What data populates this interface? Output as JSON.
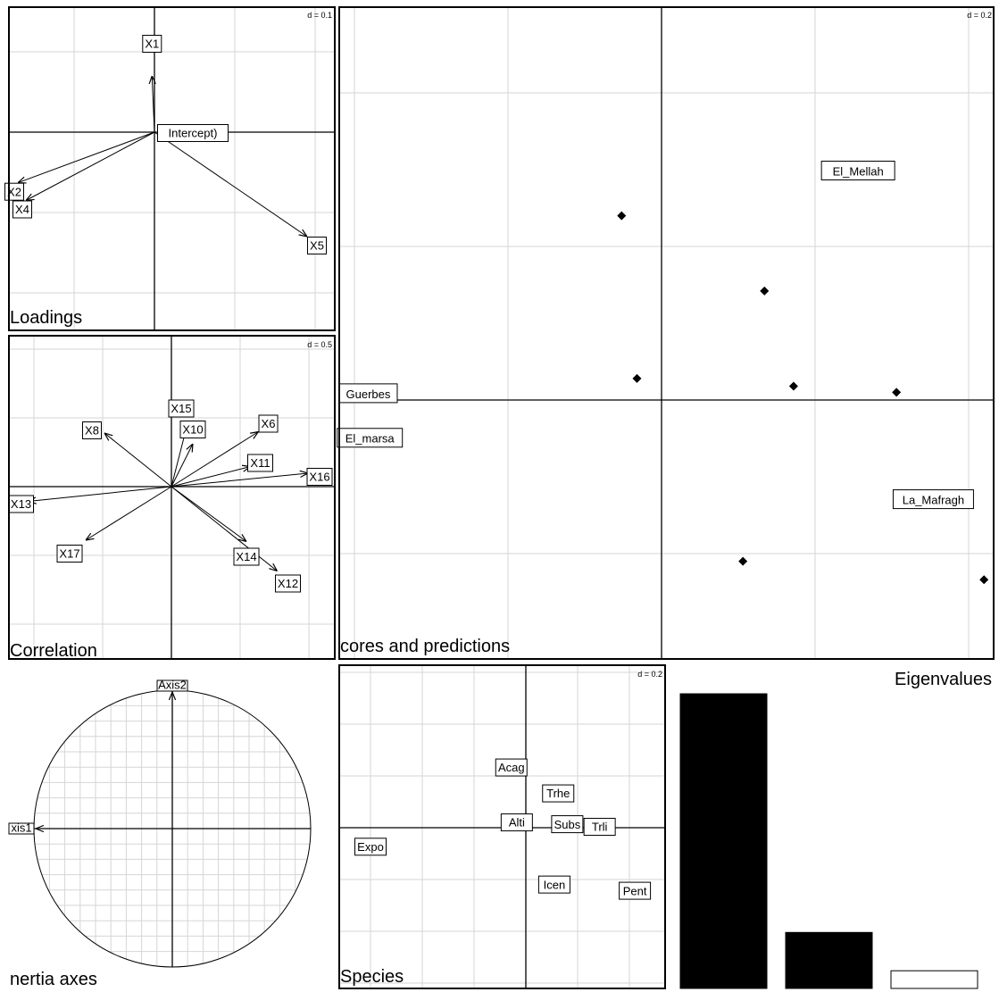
{
  "chart_data": [
    {
      "panel": "Loadings",
      "type": "scatter",
      "title": "Loadings",
      "d_label": "d = 0.1",
      "origin_label": "Intercept)",
      "vectors": [
        {
          "label": "X1",
          "x": -0.003,
          "y": 0.07
        },
        {
          "label": "X2",
          "x": -0.17,
          "y": -0.063
        },
        {
          "label": "X4",
          "x": -0.16,
          "y": -0.085
        },
        {
          "label": "X5",
          "x": 0.19,
          "y": -0.13
        }
      ]
    },
    {
      "panel": "Correlation",
      "type": "scatter",
      "title": "Correlation",
      "d_label": "d = 0.5",
      "vectors": [
        {
          "label": "X8",
          "x": -0.5,
          "y": 0.4
        },
        {
          "label": "X15",
          "x": 0.12,
          "y": 0.47
        },
        {
          "label": "X10",
          "x": 0.16,
          "y": 0.32
        },
        {
          "label": "X6",
          "x": 0.65,
          "y": 0.41
        },
        {
          "label": "X11",
          "x": 0.59,
          "y": 0.15
        },
        {
          "label": "X16",
          "x": 1.02,
          "y": 0.1
        },
        {
          "label": "X13",
          "x": -1.07,
          "y": -0.11
        },
        {
          "label": "X17",
          "x": -0.64,
          "y": -0.4
        },
        {
          "label": "X14",
          "x": 0.56,
          "y": -0.41
        },
        {
          "label": "X12",
          "x": 0.79,
          "y": -0.63
        }
      ]
    },
    {
      "panel": "Scores and predictions",
      "type": "scatter",
      "title": "cores and predictions",
      "d_label": "d = 0.2",
      "points": [
        {
          "x": -0.026,
          "y": 0.12
        },
        {
          "x": 0.067,
          "y": 0.071
        },
        {
          "x": -0.016,
          "y": 0.014
        },
        {
          "x": 0.086,
          "y": 0.009
        },
        {
          "x": 0.153,
          "y": 0.005
        },
        {
          "x": 0.053,
          "y": -0.105
        },
        {
          "x": 0.21,
          "y": -0.117
        }
      ],
      "labels": [
        {
          "label": "El_Mellah",
          "x": 0.128,
          "y": 0.15
        },
        {
          "label": "Guerbes",
          "x": -0.191,
          "y": 0.005
        },
        {
          "label": "El_marsa",
          "x": -0.19,
          "y": -0.024
        },
        {
          "label": "La_Mafragh",
          "x": 0.177,
          "y": -0.064
        }
      ]
    },
    {
      "panel": "Inertia axes",
      "type": "scatter",
      "title": "nertia axes",
      "vectors": [
        {
          "label": "Axis2",
          "x": 0.0,
          "y": 1.0
        },
        {
          "label": "xis1",
          "x": -1.0,
          "y": 0.0
        }
      ]
    },
    {
      "panel": "Species",
      "type": "scatter",
      "title": "Species",
      "d_label": "d = 0.2",
      "labels": [
        {
          "label": "Acag",
          "x": -0.056,
          "y": 0.236
        },
        {
          "label": "Trhe",
          "x": 0.125,
          "y": 0.136
        },
        {
          "label": "Alti",
          "x": -0.035,
          "y": 0.024
        },
        {
          "label": "Subs",
          "x": 0.16,
          "y": 0.017
        },
        {
          "label": "Trli",
          "x": 0.285,
          "y": 0.007
        },
        {
          "label": "Expo",
          "x": -0.6,
          "y": -0.07
        },
        {
          "label": "Icen",
          "x": 0.11,
          "y": -0.216
        },
        {
          "label": "Pent",
          "x": 0.421,
          "y": -0.24
        }
      ]
    },
    {
      "panel": "Eigenvalues",
      "type": "bar",
      "title": "Eigenvalues",
      "values": [
        1.0,
        0.19,
        0.06
      ],
      "colors": [
        "#000000",
        "#000000",
        "#ffffff"
      ]
    }
  ]
}
